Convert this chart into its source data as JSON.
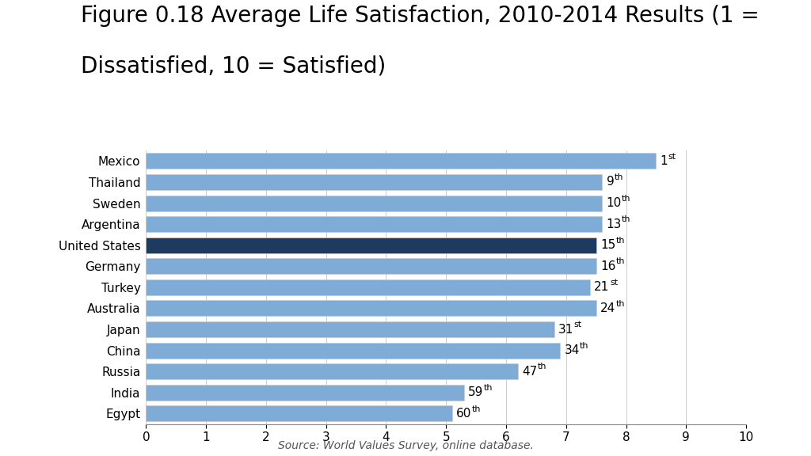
{
  "title_line1": "Figure 0.18 Average Life Satisfaction, 2010-2014 Results (1 =",
  "title_line2": "Dissatisfied, 10 = Satisfied)",
  "source": "Source: World Values Survey, online database.",
  "categories": [
    "Mexico",
    "Thailand",
    "Sweden",
    "Argentina",
    "United States",
    "Germany",
    "Turkey",
    "Australia",
    "Japan",
    "China",
    "Russia",
    "India",
    "Egypt"
  ],
  "values": [
    8.5,
    7.6,
    7.6,
    7.6,
    7.5,
    7.5,
    7.4,
    7.5,
    6.8,
    6.9,
    6.2,
    5.3,
    5.1
  ],
  "rank_bases": [
    "1",
    "9",
    "10",
    "13",
    "15",
    "16",
    "21",
    "24",
    "31",
    "34",
    "47",
    "59",
    "60"
  ],
  "rank_superscripts": [
    "st",
    "th",
    "th",
    "th",
    "th",
    "th",
    "st",
    "th",
    "st",
    "th",
    "th",
    "th",
    "th"
  ],
  "bar_color_default": "#7facd6",
  "bar_color_highlight": "#1e3a5f",
  "highlight_index": 4,
  "xlim": [
    0,
    10
  ],
  "xticks": [
    0,
    1,
    2,
    3,
    4,
    5,
    6,
    7,
    8,
    9,
    10
  ],
  "background_color": "#ffffff",
  "title_fontsize": 20,
  "label_fontsize": 11,
  "tick_fontsize": 11,
  "source_fontsize": 10,
  "bar_height": 0.75
}
